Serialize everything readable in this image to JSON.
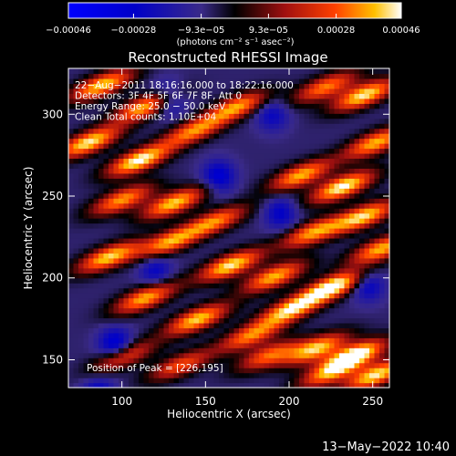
{
  "chart_data": {
    "type": "heatmap",
    "title": "Reconstructed RHESSI Image",
    "xlabel": "Heliocentric X (arcsec)",
    "ylabel": "Heliocentric Y (arcsec)",
    "xlim": [
      68,
      260
    ],
    "ylim": [
      133,
      328
    ],
    "x_ticks": [
      {
        "v": 100,
        "label": "100"
      },
      {
        "v": 150,
        "label": "150"
      },
      {
        "v": 200,
        "label": "200"
      },
      {
        "v": 250,
        "label": "250"
      }
    ],
    "y_ticks": [
      {
        "v": 150,
        "label": "150"
      },
      {
        "v": 200,
        "label": "200"
      },
      {
        "v": 250,
        "label": "250"
      },
      {
        "v": 300,
        "label": "300"
      }
    ],
    "colorbar": {
      "range": [
        -0.00046,
        0.00046
      ],
      "unit_label": "(photons cm⁻² s⁻¹ asec⁻²)",
      "ticks": [
        {
          "v": -0.00046,
          "label": "−0.00046"
        },
        {
          "v": -0.00028,
          "label": "−0.00028"
        },
        {
          "v": -9.3e-05,
          "label": "−9.3e−05"
        },
        {
          "v": 9.3e-05,
          "label": "9.3e−05"
        },
        {
          "v": 0.00028,
          "label": "0.00028"
        },
        {
          "v": 0.00046,
          "label": "0.00046"
        }
      ]
    },
    "info_lines": [
      "22−Aug−2011 18:16:16.000 to 18:22:16.000",
      "Detectors: 3F 4F 5F 6F 7F 8F, Att 0",
      "Energy Range: 25.0 − 50.0 keV",
      "Clean     Total counts: 1.10E+04"
    ],
    "peak_label": "Position of Peak = [226,195]",
    "peak": [
      226,
      195
    ],
    "blobs": [
      {
        "x": 88,
        "y": 318,
        "w": 0.85
      },
      {
        "x": 114,
        "y": 305,
        "w": 0.8
      },
      {
        "x": 80,
        "y": 283,
        "w": 0.9
      },
      {
        "x": 110,
        "y": 272,
        "w": 0.95
      },
      {
        "x": 143,
        "y": 290,
        "w": 0.7
      },
      {
        "x": 169,
        "y": 305,
        "w": 0.75
      },
      {
        "x": 222,
        "y": 317,
        "w": 0.7
      },
      {
        "x": 245,
        "y": 312,
        "w": 0.9
      },
      {
        "x": 100,
        "y": 248,
        "w": 0.75
      },
      {
        "x": 131,
        "y": 246,
        "w": 0.85
      },
      {
        "x": 156,
        "y": 235,
        "w": 0.7
      },
      {
        "x": 207,
        "y": 263,
        "w": 0.8
      },
      {
        "x": 232,
        "y": 256,
        "w": 0.95
      },
      {
        "x": 252,
        "y": 283,
        "w": 0.8
      },
      {
        "x": 92,
        "y": 213,
        "w": 0.85
      },
      {
        "x": 128,
        "y": 222,
        "w": 0.75
      },
      {
        "x": 165,
        "y": 208,
        "w": 0.9
      },
      {
        "x": 191,
        "y": 201,
        "w": 0.8
      },
      {
        "x": 214,
        "y": 228,
        "w": 0.75
      },
      {
        "x": 245,
        "y": 238,
        "w": 0.85
      },
      {
        "x": 114,
        "y": 188,
        "w": 0.8
      },
      {
        "x": 145,
        "y": 175,
        "w": 0.85
      },
      {
        "x": 177,
        "y": 165,
        "w": 0.7
      },
      {
        "x": 226,
        "y": 195,
        "w": 1.0
      },
      {
        "x": 255,
        "y": 218,
        "w": 0.8
      },
      {
        "x": 201,
        "y": 181,
        "w": 0.85
      },
      {
        "x": 101,
        "y": 152,
        "w": 0.6
      },
      {
        "x": 135,
        "y": 147,
        "w": 0.6
      },
      {
        "x": 188,
        "y": 153,
        "w": 0.65
      },
      {
        "x": 216,
        "y": 157,
        "w": 0.85
      },
      {
        "x": 239,
        "y": 153,
        "w": 1.0
      },
      {
        "x": 252,
        "y": 141,
        "w": 0.9
      },
      {
        "x": 224,
        "y": 142,
        "w": 0.65
      }
    ],
    "cold_spots": [
      {
        "x": 128,
        "y": 310,
        "w": 0.5
      },
      {
        "x": 158,
        "y": 262,
        "w": 0.55
      },
      {
        "x": 195,
        "y": 240,
        "w": 0.45
      },
      {
        "x": 96,
        "y": 160,
        "w": 0.55
      },
      {
        "x": 86,
        "y": 130,
        "w": 0.45
      },
      {
        "x": 247,
        "y": 196,
        "w": 0.45
      },
      {
        "x": 190,
        "y": 300,
        "w": 0.4
      },
      {
        "x": 120,
        "y": 205,
        "w": 0.4
      }
    ]
  },
  "timestamp": "13−May−2022 10:40"
}
